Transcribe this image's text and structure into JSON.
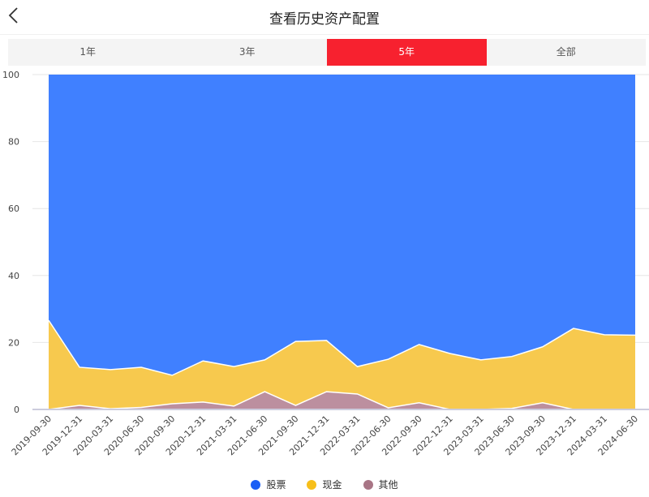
{
  "header": {
    "title": "查看历史资产配置",
    "back_icon": "chevron-left-icon"
  },
  "tabs": [
    {
      "label": "1年",
      "active": false
    },
    {
      "label": "3年",
      "active": false
    },
    {
      "label": "5年",
      "active": true
    },
    {
      "label": "全部",
      "active": false
    }
  ],
  "colors": {
    "stock": "#4080ff",
    "cash": "#f7c94e",
    "other": "#bc8f9f",
    "tab_active": "#f7212f",
    "legend_stock": "#1a5ef5",
    "legend_cash": "#f7bf1a",
    "legend_other": "#a87585"
  },
  "legend": [
    {
      "label": "股票",
      "color": "#1a5ef5"
    },
    {
      "label": "现金",
      "color": "#f7bf1a"
    },
    {
      "label": "其他",
      "color": "#a87585"
    }
  ],
  "chart_data": {
    "type": "area",
    "stacked": true,
    "title": "",
    "xlabel": "",
    "ylabel": "",
    "ylim": [
      0,
      100
    ],
    "yticks": [
      0,
      20,
      40,
      60,
      80,
      100
    ],
    "grid": true,
    "legend_position": "bottom",
    "categories": [
      "2019-09-30",
      "2019-12-31",
      "2020-03-31",
      "2020-06-30",
      "2020-09-30",
      "2020-12-31",
      "2021-03-31",
      "2021-06-30",
      "2021-09-30",
      "2021-12-31",
      "2022-03-31",
      "2022-06-30",
      "2022-09-30",
      "2022-12-31",
      "2023-03-31",
      "2023-06-30",
      "2023-09-30",
      "2023-12-31",
      "2024-03-31",
      "2024-06-30"
    ],
    "series": [
      {
        "name": "其他",
        "values": [
          0.0,
          1.2,
          0.2,
          0.6,
          1.7,
          2.2,
          1.0,
          5.3,
          1.2,
          5.3,
          4.6,
          0.5,
          2.0,
          0.0,
          0.0,
          0.3,
          2.0,
          0.0,
          0.0,
          0.0
        ]
      },
      {
        "name": "现金",
        "values": [
          26.6,
          11.4,
          11.7,
          12.0,
          8.5,
          12.3,
          11.8,
          9.5,
          19.1,
          15.3,
          8.2,
          14.5,
          17.4,
          16.7,
          14.8,
          15.5,
          16.7,
          24.2,
          22.3,
          22.2
        ]
      },
      {
        "name": "股票",
        "values": [
          73.4,
          87.4,
          88.1,
          87.4,
          89.8,
          85.5,
          87.2,
          85.2,
          79.7,
          79.4,
          87.2,
          85.0,
          80.6,
          83.3,
          85.2,
          84.2,
          81.3,
          75.8,
          77.7,
          77.8
        ]
      }
    ]
  }
}
